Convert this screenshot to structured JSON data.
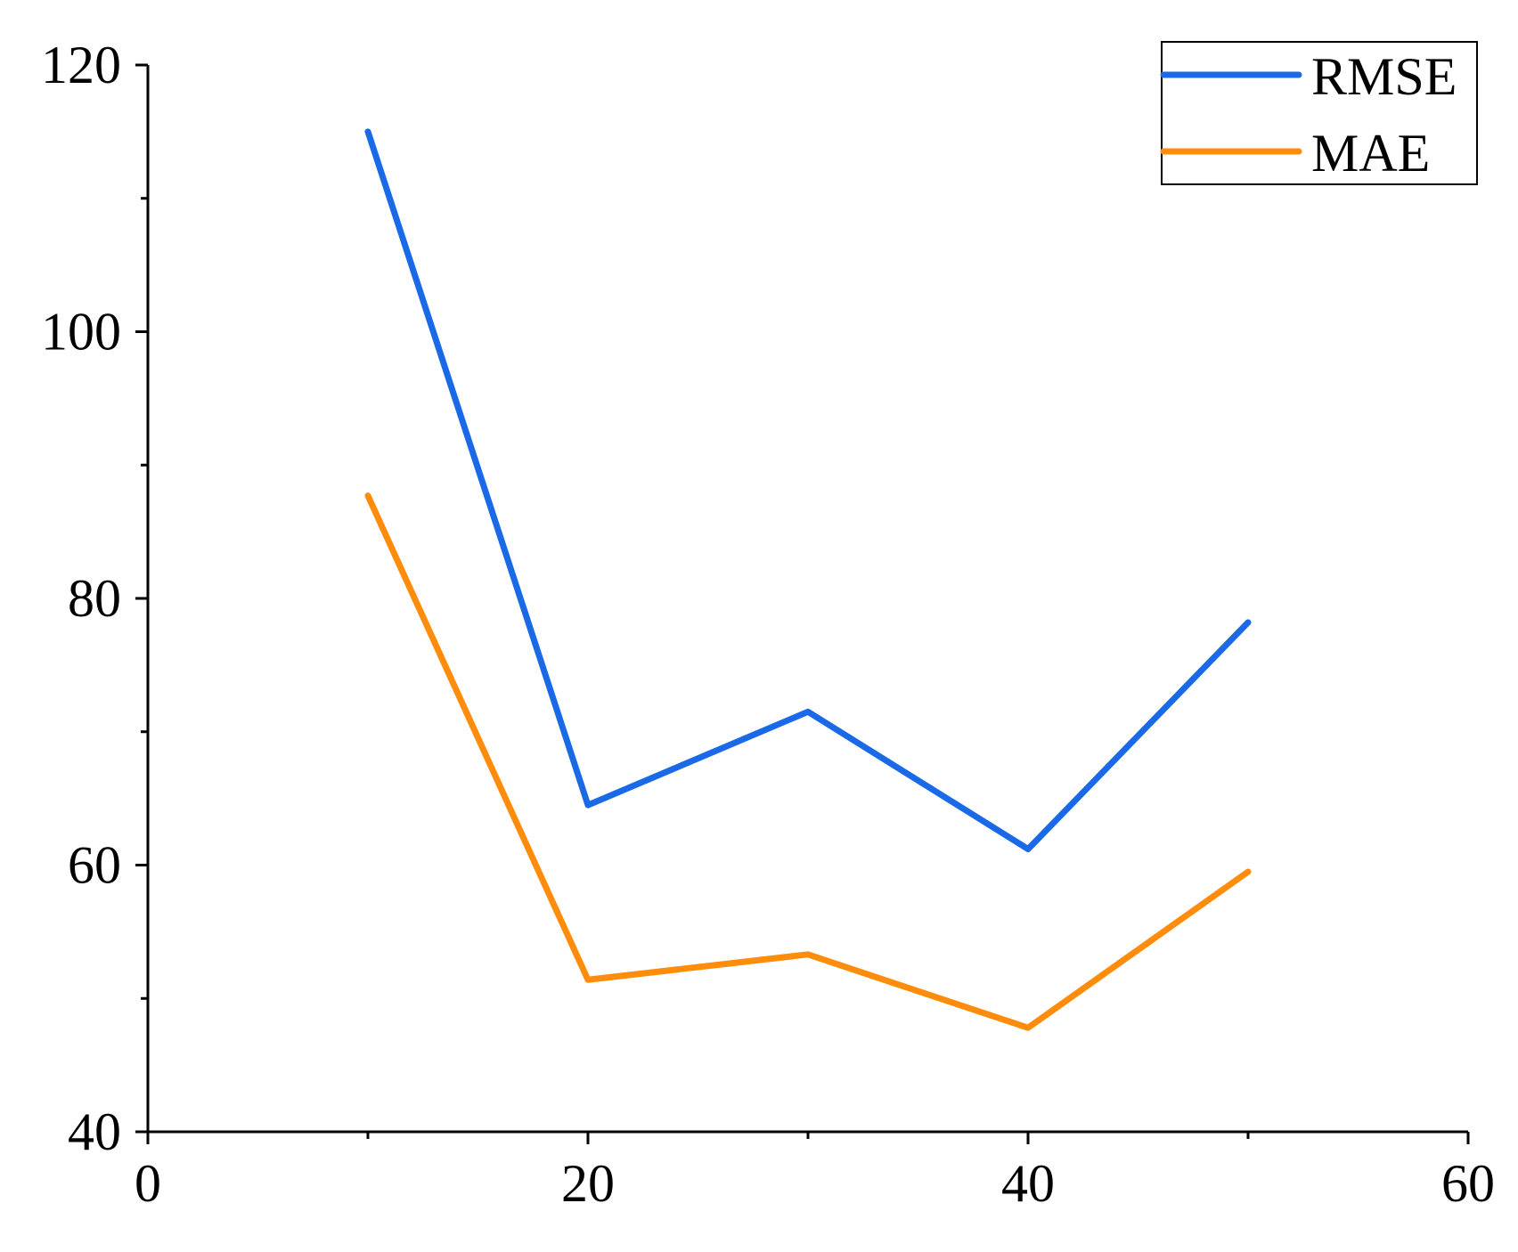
{
  "chart_data": {
    "type": "line",
    "x": [
      10,
      20,
      30,
      40,
      50
    ],
    "series": [
      {
        "name": "RMSE",
        "color": "#1a6ae8",
        "values": [
          115,
          64.5,
          71.5,
          61.2,
          78.2
        ]
      },
      {
        "name": "MAE",
        "color": "#ff8c0a",
        "values": [
          87.7,
          51.4,
          53.3,
          47.8,
          59.5
        ]
      }
    ],
    "xlim": [
      0,
      60
    ],
    "ylim": [
      40,
      120
    ],
    "x_ticks": [
      0,
      20,
      40,
      60
    ],
    "x_tick_labels": [
      "0",
      "20",
      "40",
      "60"
    ],
    "y_ticks": [
      40,
      60,
      80,
      100,
      120
    ],
    "y_tick_labels": [
      "40",
      "60",
      "80",
      "100",
      "120"
    ],
    "x_minor_ticks": [
      10,
      30,
      50
    ],
    "y_minor_ticks": [
      50,
      70,
      90,
      110
    ],
    "title": "",
    "xlabel": "",
    "ylabel": "",
    "grid": false,
    "legend_position": "top-right"
  }
}
